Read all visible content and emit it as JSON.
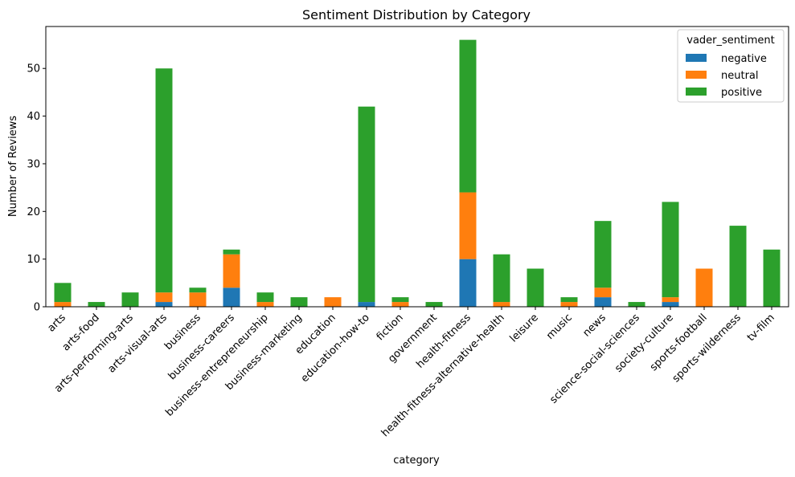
{
  "chart_data": {
    "type": "bar",
    "stacked": true,
    "title": "Sentiment Distribution by Category",
    "xlabel": "category",
    "ylabel": "Number of Reviews",
    "ylim": [
      0,
      58.8
    ],
    "yticks": [
      0,
      10,
      20,
      30,
      40,
      50
    ],
    "grid": false,
    "legend": {
      "title": "vader_sentiment",
      "placement": "top-right"
    },
    "categories": [
      "arts",
      "arts-food",
      "arts-performing-arts",
      "arts-visual-arts",
      "business",
      "business-careers",
      "business-entrepreneurship",
      "business-marketing",
      "education",
      "education-how-to",
      "fiction",
      "government",
      "health-fitness",
      "health-fitness-alternative-health",
      "leisure",
      "music",
      "news",
      "science-social-sciences",
      "society-culture",
      "sports-football",
      "sports-wilderness",
      "tv-film"
    ],
    "series": [
      {
        "name": "negative",
        "color": "#1f77b4",
        "values": [
          0,
          0,
          0,
          1,
          0,
          4,
          0,
          0,
          0,
          1,
          0,
          0,
          10,
          0,
          0,
          0,
          2,
          0,
          1,
          0,
          0,
          0
        ]
      },
      {
        "name": "neutral",
        "color": "#ff7f0e",
        "values": [
          1,
          0,
          0,
          2,
          3,
          7,
          1,
          0,
          2,
          0,
          1,
          0,
          14,
          1,
          0,
          1,
          2,
          0,
          1,
          8,
          0,
          0
        ]
      },
      {
        "name": "positive",
        "color": "#2ca02c",
        "values": [
          4,
          1,
          3,
          47,
          1,
          1,
          2,
          2,
          0,
          41,
          1,
          1,
          32,
          10,
          8,
          1,
          14,
          1,
          20,
          0,
          17,
          12
        ]
      }
    ]
  }
}
